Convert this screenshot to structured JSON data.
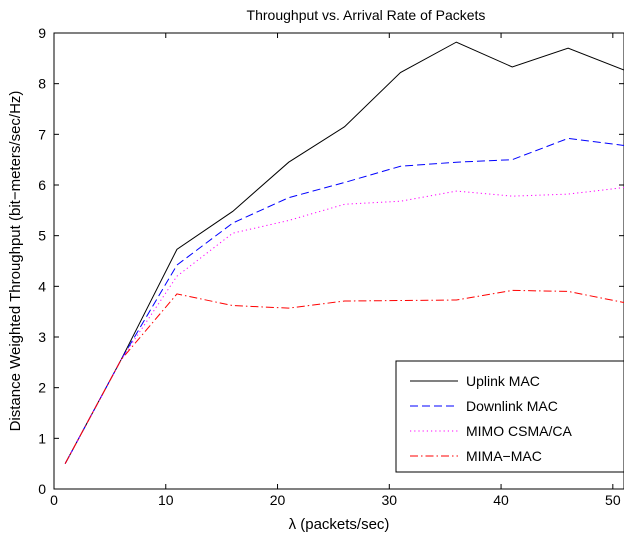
{
  "chart_data": {
    "type": "line",
    "title": "Throughput vs. Arrival Rate of Packets",
    "xlabel": "λ (packets/sec)",
    "ylabel": "Distance Weighted Throughput (bit−meters/sec/Hz)",
    "xlim": [
      0,
      51
    ],
    "ylim": [
      0,
      9
    ],
    "xticks": [
      "0",
      "10",
      "20",
      "30",
      "40",
      "50"
    ],
    "yticks": [
      "0",
      "1",
      "2",
      "3",
      "4",
      "5",
      "6",
      "7",
      "8",
      "9"
    ],
    "grid": false,
    "legend_position": "bottom-right",
    "x": [
      1,
      6,
      11,
      16,
      21,
      26,
      31,
      36,
      41,
      46,
      51
    ],
    "series": [
      {
        "name": "Uplink MAC",
        "color": "#000000",
        "dash": "solid",
        "values": [
          0.5,
          2.55,
          4.73,
          5.48,
          6.45,
          7.15,
          8.22,
          8.82,
          8.33,
          8.7,
          8.27
        ]
      },
      {
        "name": "Downlink MAC",
        "color": "#0000ff",
        "dash": "dashed",
        "values": [
          0.5,
          2.55,
          4.42,
          5.25,
          5.75,
          6.05,
          6.37,
          6.45,
          6.5,
          6.92,
          6.78
        ]
      },
      {
        "name": "MIMO CSMA/CA",
        "color": "#ff00ff",
        "dash": "dotted",
        "values": [
          0.5,
          2.55,
          4.2,
          5.05,
          5.3,
          5.62,
          5.68,
          5.88,
          5.78,
          5.82,
          5.95
        ]
      },
      {
        "name": "MIMA−MAC",
        "color": "#ff0000",
        "dash": "dashdot",
        "values": [
          0.5,
          2.55,
          3.85,
          3.62,
          3.57,
          3.71,
          3.72,
          3.73,
          3.92,
          3.9,
          3.68
        ]
      }
    ]
  }
}
